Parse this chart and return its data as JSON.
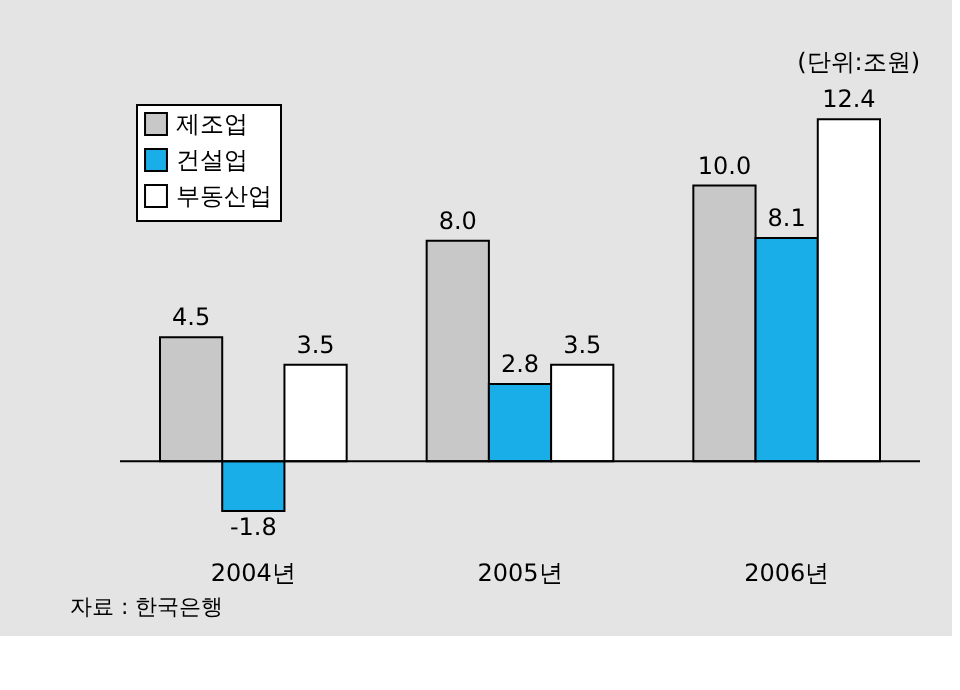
{
  "chart_data": {
    "type": "bar",
    "categories": [
      "2004년",
      "2005년",
      "2006년"
    ],
    "series": [
      {
        "name": "제조업",
        "color": "#c8c8c8",
        "values": [
          4.5,
          8.0,
          10.0
        ],
        "value_labels": [
          "4.5",
          "8.0",
          "10.0"
        ]
      },
      {
        "name": "건설업",
        "color": "#19aee8",
        "values": [
          -1.8,
          2.8,
          8.1
        ],
        "value_labels": [
          "-1.8",
          "2.8",
          "8.1"
        ]
      },
      {
        "name": "부동산업",
        "color": "#ffffff",
        "values": [
          3.5,
          3.5,
          12.4
        ],
        "value_labels": [
          "3.5",
          "3.5",
          "12.4"
        ]
      }
    ],
    "legend": "top left",
    "grid": false,
    "annotations": [
      "(단위:조원)",
      "자료 : 한국은행"
    ]
  }
}
